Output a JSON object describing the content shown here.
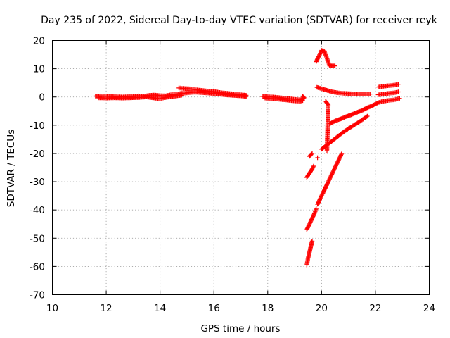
{
  "chart_data": {
    "type": "scatter",
    "title": "Day 235 of 2022, Sidereal Day-to-day VTEC variation (SDTVAR) for receiver reyk",
    "xlabel": "GPS time / hours",
    "ylabel": "SDTVAR / TECUs",
    "xlim": [
      10,
      24
    ],
    "ylim": [
      -70,
      20
    ],
    "xticks": [
      10,
      12,
      14,
      16,
      18,
      20,
      22,
      24
    ],
    "yticks": [
      20,
      10,
      0,
      -10,
      -20,
      -30,
      -40,
      -50,
      -60,
      -70
    ],
    "grid": true,
    "marker": "+",
    "color": "#ff0000",
    "segments": [
      {
        "name": "morning",
        "points": [
          [
            11.6,
            0.3
          ],
          [
            11.8,
            0.4
          ],
          [
            12.0,
            0.3
          ],
          [
            12.2,
            0.2
          ],
          [
            12.4,
            0.1
          ],
          [
            12.6,
            0.0
          ],
          [
            12.8,
            0.1
          ],
          [
            13.0,
            0.2
          ],
          [
            13.2,
            0.4
          ],
          [
            13.4,
            0.3
          ],
          [
            13.6,
            0.6
          ],
          [
            13.8,
            0.7
          ],
          [
            14.0,
            0.5
          ],
          [
            14.2,
            0.4
          ],
          [
            14.4,
            0.8
          ],
          [
            14.6,
            1.0
          ],
          [
            14.8,
            1.3
          ],
          [
            15.0,
            1.4
          ]
        ]
      },
      {
        "name": "morning-lower",
        "points": [
          [
            11.7,
            -0.3
          ],
          [
            12.0,
            -0.4
          ],
          [
            12.3,
            -0.3
          ],
          [
            12.6,
            -0.4
          ],
          [
            12.9,
            -0.3
          ],
          [
            13.2,
            -0.2
          ],
          [
            13.5,
            0.0
          ],
          [
            13.8,
            -0.4
          ],
          [
            14.0,
            -0.6
          ],
          [
            14.2,
            -0.2
          ],
          [
            14.5,
            0.2
          ],
          [
            14.8,
            0.6
          ]
        ]
      },
      {
        "name": "midday-upper",
        "points": [
          [
            14.7,
            3.2
          ],
          [
            14.9,
            3.0
          ],
          [
            15.1,
            2.9
          ],
          [
            15.3,
            2.6
          ],
          [
            15.5,
            2.4
          ],
          [
            15.7,
            2.2
          ],
          [
            15.9,
            2.0
          ],
          [
            16.1,
            1.8
          ],
          [
            16.3,
            1.5
          ],
          [
            16.5,
            1.3
          ],
          [
            16.7,
            1.1
          ],
          [
            16.9,
            0.9
          ],
          [
            17.1,
            0.7
          ],
          [
            17.2,
            0.6
          ]
        ]
      },
      {
        "name": "midday-lower",
        "points": [
          [
            15.0,
            1.5
          ],
          [
            15.3,
            1.7
          ],
          [
            15.6,
            1.5
          ],
          [
            15.9,
            1.3
          ],
          [
            16.2,
            1.0
          ],
          [
            16.5,
            0.7
          ],
          [
            16.8,
            0.5
          ],
          [
            17.1,
            0.3
          ],
          [
            17.2,
            0.2
          ]
        ]
      },
      {
        "name": "evening",
        "points": [
          [
            17.8,
            0.2
          ],
          [
            18.0,
            0.1
          ],
          [
            18.2,
            0.0
          ],
          [
            18.4,
            -0.2
          ],
          [
            18.6,
            -0.4
          ],
          [
            18.8,
            -0.6
          ],
          [
            19.0,
            -0.8
          ],
          [
            19.2,
            -1.0
          ],
          [
            19.3,
            -0.8
          ],
          [
            19.35,
            -0.3
          ],
          [
            19.3,
            0.3
          ]
        ]
      },
      {
        "name": "evening-lower",
        "points": [
          [
            17.9,
            -0.4
          ],
          [
            18.2,
            -0.6
          ],
          [
            18.5,
            -0.9
          ],
          [
            18.8,
            -1.2
          ],
          [
            19.0,
            -1.4
          ],
          [
            19.2,
            -1.5
          ],
          [
            19.3,
            -1.3
          ]
        ]
      },
      {
        "name": "drop-a",
        "points": [
          [
            19.45,
            -59.5
          ],
          [
            19.5,
            -57
          ],
          [
            19.55,
            -55
          ],
          [
            19.6,
            -53
          ],
          [
            19.65,
            -51
          ]
        ]
      },
      {
        "name": "drop-b",
        "points": [
          [
            19.45,
            -47
          ],
          [
            19.55,
            -45
          ],
          [
            19.65,
            -43
          ],
          [
            19.75,
            -41
          ],
          [
            19.8,
            -39.5
          ]
        ]
      },
      {
        "name": "drop-c",
        "points": [
          [
            19.45,
            -28.5
          ],
          [
            19.55,
            -27
          ],
          [
            19.65,
            -25.5
          ],
          [
            19.7,
            -24.5
          ]
        ]
      },
      {
        "name": "drop-d",
        "points": [
          [
            19.55,
            -21
          ],
          [
            19.65,
            -20
          ]
        ]
      },
      {
        "name": "drop-e",
        "points": [
          [
            19.85,
            -21.5
          ]
        ]
      },
      {
        "name": "rise-steep",
        "points": [
          [
            19.85,
            -38
          ],
          [
            19.95,
            -36
          ],
          [
            20.05,
            -34
          ],
          [
            20.15,
            -32
          ],
          [
            20.25,
            -30
          ],
          [
            20.35,
            -28
          ],
          [
            20.45,
            -26
          ],
          [
            20.55,
            -24
          ],
          [
            20.65,
            -22
          ],
          [
            20.75,
            -20
          ]
        ]
      },
      {
        "name": "rise-mid",
        "points": [
          [
            20.0,
            -18.5
          ],
          [
            20.2,
            -17
          ],
          [
            20.4,
            -15.5
          ],
          [
            20.6,
            -14
          ],
          [
            20.8,
            -12.5
          ],
          [
            21.0,
            -11.2
          ],
          [
            21.2,
            -10
          ],
          [
            21.4,
            -8.8
          ],
          [
            21.6,
            -7.5
          ],
          [
            21.7,
            -6.8
          ]
        ]
      },
      {
        "name": "rise-upper",
        "points": [
          [
            20.3,
            -9.5
          ],
          [
            20.5,
            -8.5
          ],
          [
            20.7,
            -7.8
          ],
          [
            20.9,
            -7.0
          ],
          [
            21.1,
            -6.3
          ],
          [
            21.3,
            -5.5
          ],
          [
            21.5,
            -4.8
          ],
          [
            21.7,
            -3.8
          ],
          [
            21.9,
            -3.0
          ],
          [
            22.1,
            -2.0
          ],
          [
            22.3,
            -1.5
          ],
          [
            22.5,
            -1.2
          ],
          [
            22.7,
            -1.0
          ],
          [
            22.9,
            -0.5
          ]
        ]
      },
      {
        "name": "spike-high",
        "points": [
          [
            19.8,
            12.5
          ],
          [
            20.0,
            16.5
          ],
          [
            20.1,
            16.3
          ],
          [
            20.3,
            11.0
          ],
          [
            20.4,
            11.0
          ],
          [
            20.5,
            11.0
          ]
        ]
      },
      {
        "name": "mid-pos",
        "points": [
          [
            19.8,
            3.5
          ],
          [
            20.05,
            2.8
          ],
          [
            20.15,
            2.5
          ],
          [
            20.4,
            1.8
          ],
          [
            20.6,
            1.5
          ],
          [
            20.8,
            1.3
          ],
          [
            21.0,
            1.2
          ],
          [
            21.2,
            1.1
          ],
          [
            21.5,
            1.0
          ],
          [
            21.8,
            1.0
          ]
        ]
      },
      {
        "name": "isolated",
        "points": [
          [
            20.15,
            -1.5
          ],
          [
            20.25,
            -2.8
          ],
          [
            20.2,
            -19
          ]
        ]
      },
      {
        "name": "late-pos",
        "points": [
          [
            22.1,
            3.5
          ],
          [
            22.3,
            3.8
          ],
          [
            22.5,
            4.0
          ],
          [
            22.7,
            4.2
          ],
          [
            22.85,
            4.5
          ]
        ]
      },
      {
        "name": "late-mid",
        "points": [
          [
            22.1,
            0.8
          ],
          [
            22.3,
            1.0
          ],
          [
            22.5,
            1.3
          ],
          [
            22.7,
            1.5
          ],
          [
            22.85,
            1.8
          ]
        ]
      }
    ]
  }
}
